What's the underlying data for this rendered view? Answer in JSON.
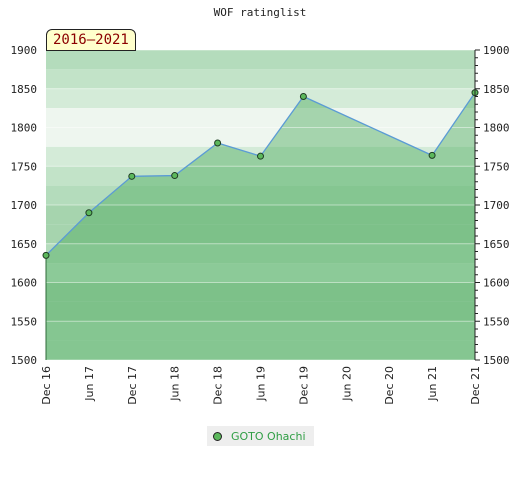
{
  "chart_data": {
    "type": "area",
    "title": "WOF ratinglist",
    "period": "2016–2021",
    "xlabel": "",
    "ylabel": "",
    "ylim": [
      1500,
      1900
    ],
    "yticks": [
      1500,
      1550,
      1600,
      1650,
      1700,
      1750,
      1800,
      1850,
      1900
    ],
    "xtick_labels": [
      "Dec 16",
      "Jun 17",
      "Dec 17",
      "Jun 18",
      "Dec 18",
      "Jun 19",
      "Dec 19",
      "Jun 20",
      "Dec 20",
      "Jun 21",
      "Dec 21"
    ],
    "grid": true,
    "legend_position": "bottom",
    "series": [
      {
        "name": "GOTO Ohachi",
        "color": "#5cb85c",
        "line_color": "#5b9bd5",
        "points": [
          {
            "x": "Dec 16",
            "y": 1635
          },
          {
            "x": "Jun 17",
            "y": 1690
          },
          {
            "x": "Dec 17",
            "y": 1737
          },
          {
            "x": "Jun 18",
            "y": 1738
          },
          {
            "x": "Dec 18",
            "y": 1780
          },
          {
            "x": "Jun 19",
            "y": 1763
          },
          {
            "x": "Dec 19",
            "y": 1840
          },
          {
            "x": "Jun 21",
            "y": 1764
          },
          {
            "x": "Dec 21",
            "y": 1845
          }
        ]
      }
    ]
  }
}
